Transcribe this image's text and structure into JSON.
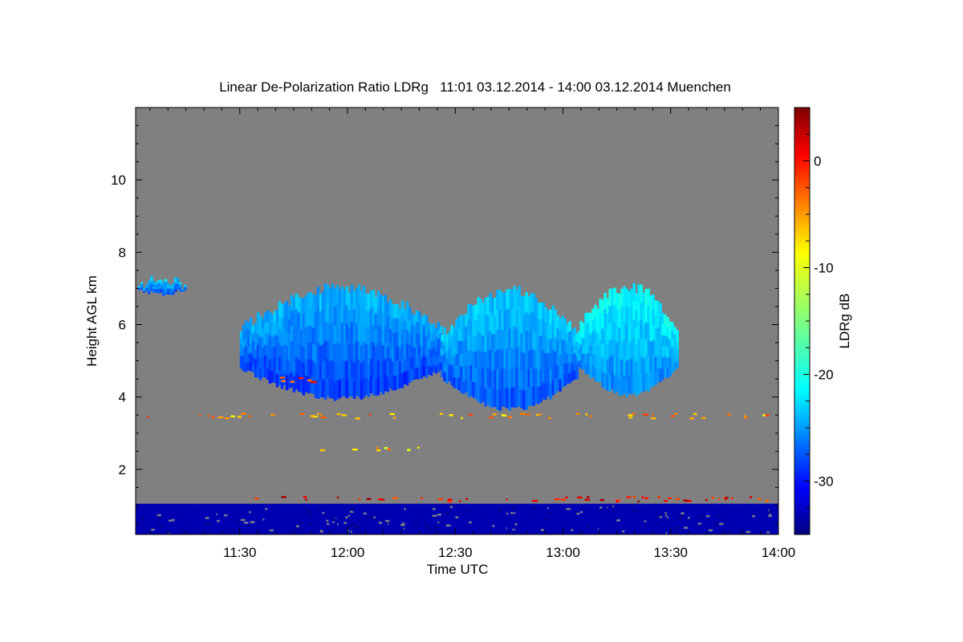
{
  "chart_data": {
    "type": "heatmap",
    "title": "Linear De-Polarization Ratio LDRg   11:01 03.12.2014 - 14:00 03.12.2014 Muenchen",
    "xlabel": "Time UTC",
    "ylabel": "Height AGL km",
    "x_range_minutes": [
      661,
      840
    ],
    "y_range_km": [
      0.2,
      12.0
    ],
    "x_ticks": [
      {
        "minutes": 690,
        "label": "11:30"
      },
      {
        "minutes": 720,
        "label": "12:00"
      },
      {
        "minutes": 750,
        "label": "12:30"
      },
      {
        "minutes": 780,
        "label": "13:00"
      },
      {
        "minutes": 810,
        "label": "13:30"
      },
      {
        "minutes": 840,
        "label": "14:00"
      }
    ],
    "y_ticks": [
      {
        "value": 2,
        "label": "2"
      },
      {
        "value": 4,
        "label": "4"
      },
      {
        "value": 6,
        "label": "6"
      },
      {
        "value": 8,
        "label": "8"
      },
      {
        "value": 10,
        "label": "10"
      }
    ],
    "colorbar": {
      "label": "LDRg dB",
      "range": [
        -35,
        5
      ],
      "ticks": [
        {
          "value": 0,
          "label": "0"
        },
        {
          "value": -10,
          "label": "-10"
        },
        {
          "value": -20,
          "label": "-20"
        },
        {
          "value": -30,
          "label": "-30"
        }
      ]
    },
    "background_color": "#808080",
    "near_surface_layer": {
      "height_km": [
        0.2,
        1.05
      ],
      "ldr_db": -33
    },
    "cloud_regions": [
      {
        "x_minutes": [
          661,
          675
        ],
        "height_km": [
          6.8,
          7.4
        ],
        "ldr_db": -26
      },
      {
        "x_minutes": [
          690,
          746
        ],
        "height_km": [
          3.9,
          7.2
        ],
        "ldr_db": -27
      },
      {
        "x_minutes": [
          746,
          784
        ],
        "height_km": [
          3.6,
          7.1
        ],
        "ldr_db": -26
      },
      {
        "x_minutes": [
          784,
          812
        ],
        "height_km": [
          4.0,
          7.2
        ],
        "ldr_db": -24
      }
    ],
    "scatter_layers": [
      {
        "height_km": 4.5,
        "x_minutes": [
          698,
          712
        ],
        "ldr_db": -2
      },
      {
        "height_km": 3.5,
        "x_minutes": [
          661,
          840
        ],
        "ldr_db": -6
      },
      {
        "height_km": 2.6,
        "x_minutes": [
          712,
          740
        ],
        "ldr_db": -8
      },
      {
        "height_km": 1.2,
        "x_minutes": [
          690,
          840
        ],
        "ldr_db": 0
      }
    ]
  }
}
